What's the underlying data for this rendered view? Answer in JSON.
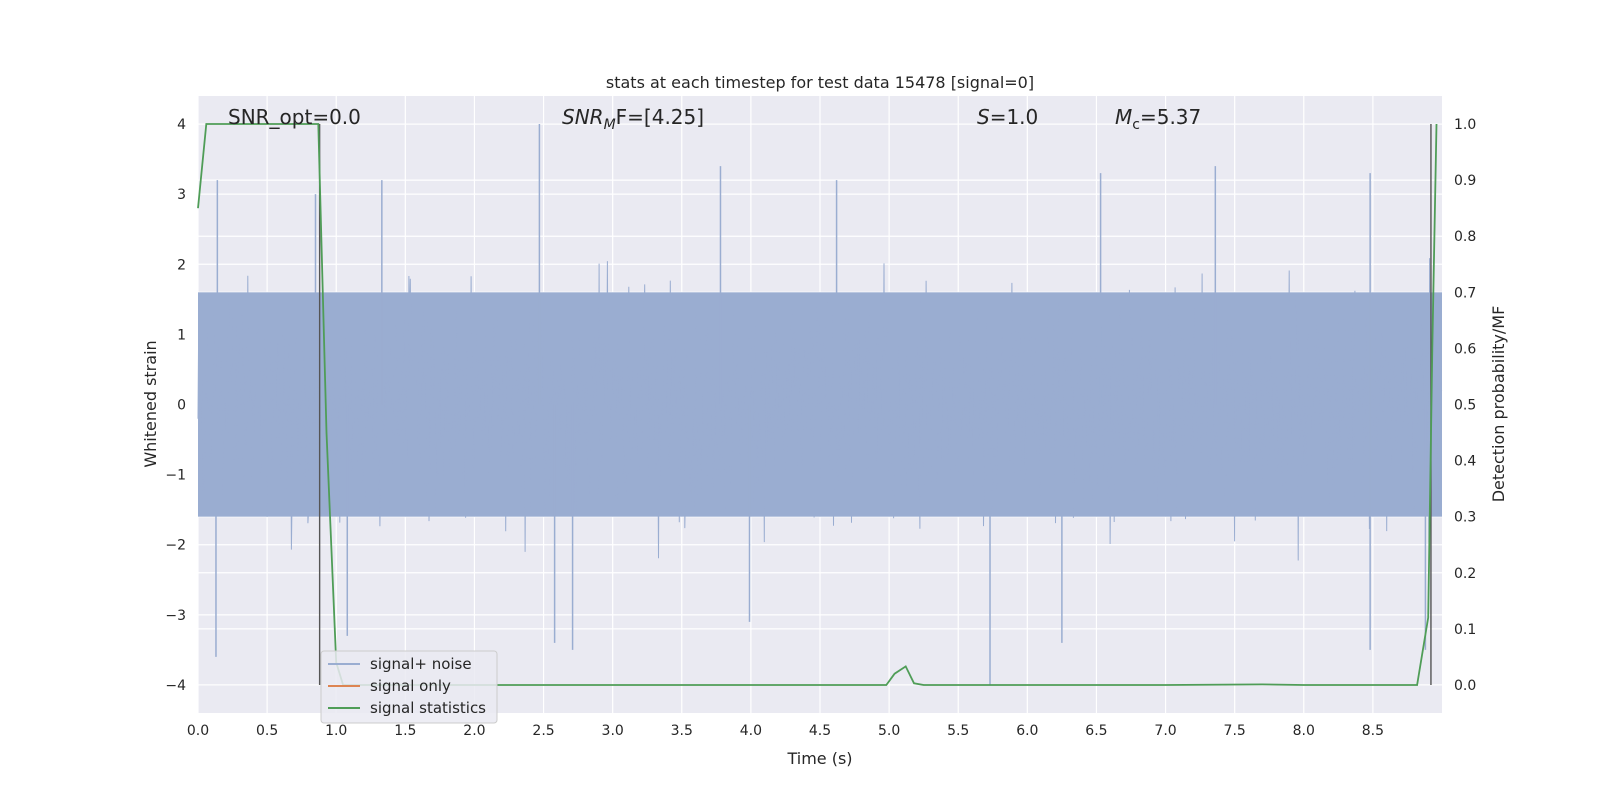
{
  "chart_data": {
    "type": "line",
    "title": "stats at each timestep for test data 15478 [signal=0]",
    "xlabel": "Time (s)",
    "ylabel": "Whitened strain",
    "ylabel_right": "Detection probability/MF",
    "xlim": [
      0.0,
      9.0
    ],
    "ylim": [
      -4.4,
      4.4
    ],
    "ylim_right": [
      -0.05,
      1.05
    ],
    "x_ticks": [
      "0.0",
      "0.5",
      "1.0",
      "1.5",
      "2.0",
      "2.5",
      "3.0",
      "3.5",
      "4.0",
      "4.5",
      "5.0",
      "5.5",
      "6.0",
      "6.5",
      "7.0",
      "7.5",
      "8.0",
      "8.5"
    ],
    "y_ticks": [
      "−4",
      "−3",
      "−2",
      "−1",
      "0",
      "1",
      "2",
      "3",
      "4"
    ],
    "y_right_ticks": [
      "0.0",
      "0.1",
      "0.2",
      "0.3",
      "0.4",
      "0.5",
      "0.6",
      "0.7",
      "0.8",
      "0.9",
      "1.0"
    ],
    "grid": true,
    "legend_position": "lower-left",
    "legend": [
      "signal+ noise",
      "signal only",
      "signal statistics"
    ],
    "annotations": {
      "snr_opt": "SNR_opt=0.0",
      "snr_mf_main": "SNR",
      "snr_mf_sub": "M",
      "snr_mf_rest": "F=[4.25]",
      "s_main": "S",
      "s_rest": "=1.0",
      "mc_main": "M",
      "mc_sub": "c",
      "mc_rest": "=5.37"
    },
    "vertical_lines_x": [
      0.88,
      8.92
    ],
    "series": [
      {
        "name": "signal+ noise",
        "color": "#9aadd1",
        "kind": "noise",
        "sample_count": 1800,
        "core_range": [
          -1.6,
          1.6
        ],
        "observed_extremes": [
          {
            "x": 0.13,
            "y": -3.6
          },
          {
            "x": 0.14,
            "y": 3.2
          },
          {
            "x": 0.85,
            "y": 3.0
          },
          {
            "x": 1.08,
            "y": -3.3
          },
          {
            "x": 1.33,
            "y": 3.2
          },
          {
            "x": 2.47,
            "y": 4.0
          },
          {
            "x": 2.58,
            "y": -3.4
          },
          {
            "x": 2.71,
            "y": -3.5
          },
          {
            "x": 3.78,
            "y": 3.4
          },
          {
            "x": 3.99,
            "y": -3.1
          },
          {
            "x": 4.62,
            "y": 3.2
          },
          {
            "x": 5.73,
            "y": -4.0
          },
          {
            "x": 6.25,
            "y": -3.4
          },
          {
            "x": 6.53,
            "y": 3.3
          },
          {
            "x": 7.36,
            "y": 3.4
          },
          {
            "x": 8.48,
            "y": -3.5
          },
          {
            "x": 8.48,
            "y": 3.3
          },
          {
            "x": 8.88,
            "y": -3.5
          }
        ]
      },
      {
        "name": "signal only",
        "color": "#dd8452",
        "kind": "line",
        "x": [],
        "y": []
      },
      {
        "name": "signal statistics",
        "color": "#4f9d57",
        "kind": "line",
        "axis": "right",
        "x": [
          0.0,
          0.06,
          0.12,
          0.2,
          0.5,
          0.87,
          0.93,
          1.0,
          1.05,
          1.1,
          2.0,
          3.0,
          4.0,
          4.98,
          5.04,
          5.12,
          5.18,
          5.25,
          6.0,
          7.0,
          7.7,
          8.0,
          8.5,
          8.82,
          8.9,
          8.93,
          8.96
        ],
        "y": [
          0.85,
          1.0,
          1.0,
          1.0,
          1.0,
          1.0,
          0.45,
          0.04,
          0.0,
          0.0,
          0.0,
          0.0,
          0.0,
          0.0,
          0.02,
          0.033,
          0.003,
          0.0,
          0.0,
          0.0,
          0.001,
          0.0,
          0.0,
          0.0,
          0.12,
          0.6,
          1.0
        ]
      }
    ]
  }
}
